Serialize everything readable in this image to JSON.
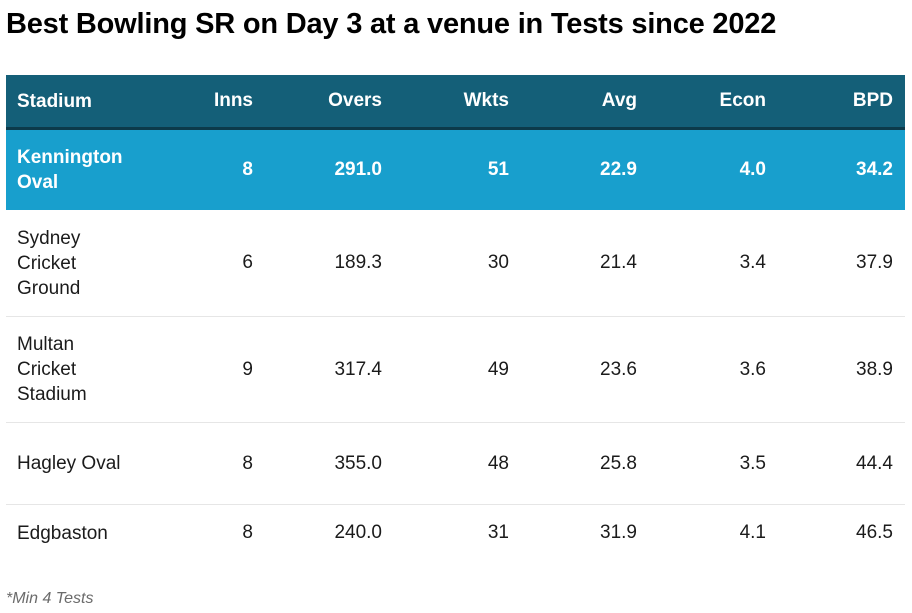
{
  "title": "Best Bowling SR on Day 3 at a venue in Tests since 2022",
  "table": {
    "columns": [
      "Stadium",
      "Inns",
      "Overs",
      "Wkts",
      "Avg",
      "Econ",
      "BPD"
    ],
    "rows": [
      {
        "stadium": "Kennington Oval",
        "inns": "8",
        "overs": "291.0",
        "wkts": "51",
        "avg": "22.9",
        "econ": "4.0",
        "bpd": "34.2",
        "highlighted": true
      },
      {
        "stadium": "Sydney Cricket Ground",
        "inns": "6",
        "overs": "189.3",
        "wkts": "30",
        "avg": "21.4",
        "econ": "3.4",
        "bpd": "37.9"
      },
      {
        "stadium": "Multan Cricket Stadium",
        "inns": "9",
        "overs": "317.4",
        "wkts": "49",
        "avg": "23.6",
        "econ": "3.6",
        "bpd": "38.9"
      },
      {
        "stadium": "Hagley Oval",
        "inns": "8",
        "overs": "355.0",
        "wkts": "48",
        "avg": "25.8",
        "econ": "3.5",
        "bpd": "44.4"
      },
      {
        "stadium": "Edgbaston",
        "inns": "8",
        "overs": "240.0",
        "wkts": "31",
        "avg": "31.9",
        "econ": "4.1",
        "bpd": "46.5"
      }
    ]
  },
  "footnote": "*Min 4 Tests",
  "colors": {
    "header_bg": "#145f78",
    "highlight_bg": "#189fcd",
    "text": "#1b1b1b"
  }
}
